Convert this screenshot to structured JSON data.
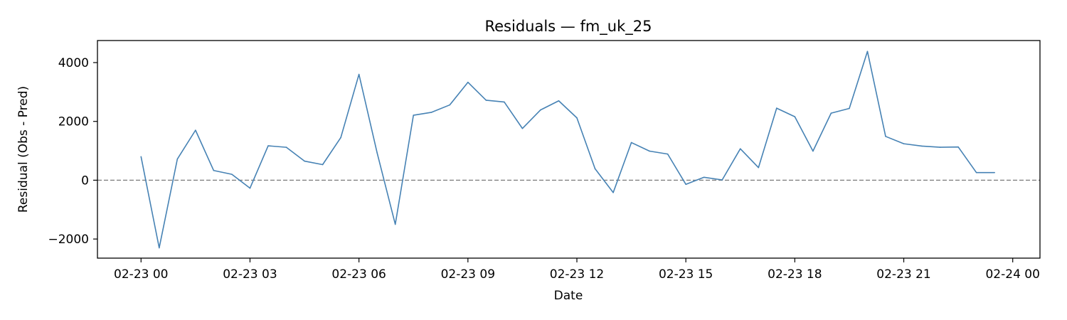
{
  "chart_data": {
    "type": "line",
    "title": "Residuals — fm_uk_25",
    "xlabel": "Date",
    "ylabel": "Residual (Obs - Pred)",
    "x_ticks": [
      "02-23 00",
      "02-23 03",
      "02-23 06",
      "02-23 09",
      "02-23 12",
      "02-23 15",
      "02-23 18",
      "02-23 21",
      "02-24 00"
    ],
    "y_ticks": [
      "−2000",
      "0",
      "2000",
      "4000"
    ],
    "x_range": [
      "2023-02-22T22:48",
      "2023-02-24T00:45"
    ],
    "ylim": [
      -2650,
      4750
    ],
    "grid": false,
    "reference_line": {
      "y": 0,
      "style": "dashed",
      "color": "#808080"
    },
    "series": [
      {
        "color": "#4682b4",
        "x": [
          "2023-02-23T00:00",
          "2023-02-23T00:30",
          "2023-02-23T01:00",
          "2023-02-23T01:30",
          "2023-02-23T02:00",
          "2023-02-23T02:30",
          "2023-02-23T03:00",
          "2023-02-23T03:30",
          "2023-02-23T04:00",
          "2023-02-23T04:30",
          "2023-02-23T05:00",
          "2023-02-23T05:30",
          "2023-02-23T06:00",
          "2023-02-23T06:30",
          "2023-02-23T07:00",
          "2023-02-23T07:30",
          "2023-02-23T08:00",
          "2023-02-23T08:30",
          "2023-02-23T09:00",
          "2023-02-23T09:30",
          "2023-02-23T10:00",
          "2023-02-23T10:30",
          "2023-02-23T11:00",
          "2023-02-23T11:30",
          "2023-02-23T12:00",
          "2023-02-23T12:30",
          "2023-02-23T13:00",
          "2023-02-23T13:30",
          "2023-02-23T14:00",
          "2023-02-23T14:30",
          "2023-02-23T15:00",
          "2023-02-23T15:30",
          "2023-02-23T16:00",
          "2023-02-23T16:30",
          "2023-02-23T17:00",
          "2023-02-23T17:30",
          "2023-02-23T18:00",
          "2023-02-23T18:30",
          "2023-02-23T19:00",
          "2023-02-23T19:30",
          "2023-02-23T20:00",
          "2023-02-23T20:30",
          "2023-02-23T21:00",
          "2023-02-23T21:30",
          "2023-02-23T22:00",
          "2023-02-23T22:30",
          "2023-02-23T23:00",
          "2023-02-23T23:30"
        ],
        "values": [
          800,
          -2300,
          720,
          1700,
          330,
          200,
          -270,
          1170,
          1120,
          650,
          530,
          1450,
          3600,
          930,
          -1500,
          2210,
          2310,
          2560,
          3330,
          2720,
          2660,
          1760,
          2390,
          2700,
          2120,
          390,
          -420,
          1280,
          990,
          890,
          -140,
          100,
          10,
          1070,
          430,
          2450,
          2160,
          990,
          2280,
          2440,
          4380,
          1490,
          1240,
          1160,
          1120,
          1130,
          260,
          260
        ]
      }
    ]
  }
}
